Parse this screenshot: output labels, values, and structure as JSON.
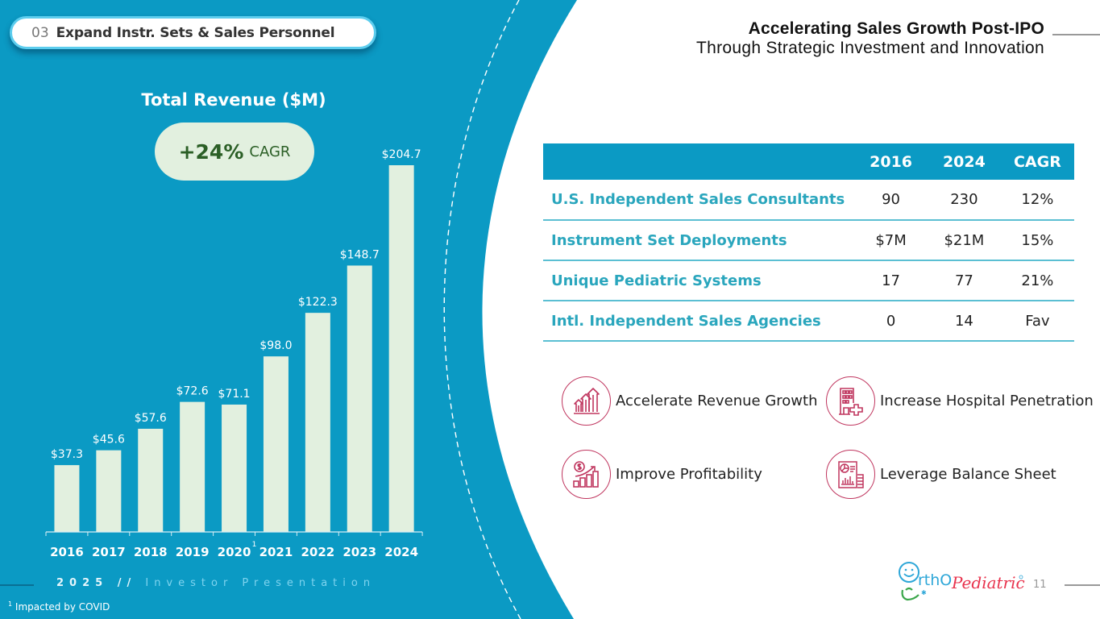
{
  "section": {
    "number": "03",
    "title": "Expand Instr. Sets & Sales Personnel"
  },
  "header": {
    "title": "Accelerating Sales Growth Post-IPO",
    "subtitle": "Through Strategic Investment and Innovation"
  },
  "colors": {
    "brand_blue": "#0b9ac4",
    "bar_fill": "#e2f0df",
    "cagr_text": "#2b5f26",
    "table_label": "#2aa6bd",
    "icon_accent": "#c0365f"
  },
  "cagr_badge": {
    "value": "+24%",
    "label": "CAGR"
  },
  "chart_data": {
    "type": "bar",
    "title": "Total Revenue ($M)",
    "xlabel": "",
    "ylabel": "",
    "categories": [
      "2016",
      "2017",
      "2018",
      "2019",
      "2020",
      "2021",
      "2022",
      "2023",
      "2024"
    ],
    "values": [
      37.3,
      45.6,
      57.6,
      72.6,
      71.1,
      98.0,
      122.3,
      148.7,
      204.7
    ],
    "data_labels": [
      "$37.3",
      "$45.6",
      "$57.6",
      "$72.6",
      "$71.1",
      "$98.0",
      "$122.3",
      "$148.7",
      "$204.7"
    ],
    "ylim": [
      0,
      204.7
    ],
    "grid": false,
    "legend": "none",
    "annotations": [
      {
        "category": "2020",
        "text": "1",
        "note": "footnote marker"
      }
    ]
  },
  "footnote": {
    "marker": "1",
    "text": "Impacted by COVID"
  },
  "footer": {
    "year": "2025 //",
    "label": "Investor Presentation",
    "page_number": "11",
    "logo_text_a": "rthO",
    "logo_text_b": "Pediatrics"
  },
  "table": {
    "headers": [
      "",
      "2016",
      "2024",
      "CAGR"
    ],
    "rows": [
      {
        "label": "U.S. Independent Sales Consultants",
        "v2016": "90",
        "v2024": "230",
        "cagr": "12%"
      },
      {
        "label": "Instrument Set Deployments",
        "v2016": "$7M",
        "v2024": "$21M",
        "cagr": "15%"
      },
      {
        "label": "Unique Pediatric Systems",
        "v2016": "17",
        "v2024": "77",
        "cagr": "21%"
      },
      {
        "label": "Intl. Independent Sales Agencies",
        "v2016": "0",
        "v2024": "14",
        "cagr": "Fav"
      }
    ]
  },
  "pillars": [
    {
      "icon": "growth-arrows-icon",
      "label": "Accelerate Revenue Growth"
    },
    {
      "icon": "hospital-icon",
      "label": "Increase Hospital Penetration"
    },
    {
      "icon": "profit-chart-icon",
      "label": "Improve Profitability"
    },
    {
      "icon": "balance-sheet-icon",
      "label": "Leverage Balance Sheet"
    }
  ]
}
